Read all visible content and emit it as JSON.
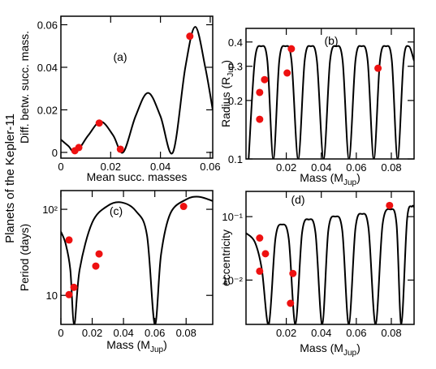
{
  "title": "Planets of the Kepler-11",
  "chart_data": [
    {
      "type": "scatter",
      "annotation": "(a)",
      "xlabel": [
        "Mean succ. masses"
      ],
      "ylabel": [
        "Diff. betw. succ. mass."
      ],
      "xlim": [
        0,
        0.061
      ],
      "xticks": [
        0,
        0.02,
        0.04,
        0.06
      ],
      "ylim": [
        -0.0027,
        0.064
      ],
      "yticks": [
        0,
        0.02,
        0.04,
        0.06
      ],
      "log_y": false,
      "color": "#ee1111",
      "x": [
        0.0056,
        0.0072,
        0.0154,
        0.0239,
        0.0518
      ],
      "values": [
        0.0008,
        0.0023,
        0.0138,
        0.0015,
        0.0546
      ],
      "curve": {
        "x": [
          0,
          0.003,
          0.006,
          0.011,
          0.016,
          0.021,
          0.025,
          0.03,
          0.035,
          0.04,
          0.045,
          0.05,
          0.054,
          0.058,
          0.061
        ],
        "values": [
          0.006,
          0.003,
          0,
          0.008,
          0.0145,
          0.008,
          0,
          0.017,
          0.028,
          0.017,
          0,
          0.04,
          0.059,
          0.04,
          0.02
        ]
      }
    },
    {
      "type": "scatter",
      "annotation": "(b)",
      "xlabel": [
        "Mass (M",
        "Jup",
        ")"
      ],
      "ylabel": [
        "Radius (R",
        "Jup",
        ")"
      ],
      "xlim": [
        -0.003,
        0.093
      ],
      "xticks": [
        0.02,
        0.04,
        0.06,
        0.08
      ],
      "ylim": [
        0.1,
        0.47
      ],
      "yticks": [
        0.1,
        0.2,
        0.3,
        0.4
      ],
      "log_y": true,
      "color": "#ee1111",
      "x": [
        0.0048,
        0.0048,
        0.0076,
        0.0205,
        0.0229,
        0.0724
      ],
      "values": [
        0.16,
        0.22,
        0.256,
        0.277,
        0.369,
        0.293
      ],
      "curve": {
        "x": [
          -0.0015,
          0.002,
          0.0057,
          0.0092,
          0.0126,
          0.016,
          0.0195,
          0.023,
          0.0268,
          0.0305,
          0.034,
          0.0375,
          0.0413,
          0.045,
          0.0486,
          0.0522,
          0.0558,
          0.0595,
          0.063,
          0.0665,
          0.07,
          0.0735,
          0.077,
          0.0803,
          0.0836,
          0.087,
          0.09,
          0.093
        ],
        "values": [
          0.1,
          0.32,
          0.38,
          0.32,
          0.1,
          0.32,
          0.38,
          0.32,
          0.1,
          0.32,
          0.38,
          0.32,
          0.1,
          0.32,
          0.38,
          0.32,
          0.1,
          0.32,
          0.38,
          0.32,
          0.1,
          0.32,
          0.38,
          0.32,
          0.1,
          0.32,
          0.38,
          0.32
        ]
      }
    },
    {
      "type": "scatter",
      "annotation": "(c)",
      "xlabel": [
        "Mass (M",
        "Jup",
        ")"
      ],
      "ylabel": [
        "Period (days)"
      ],
      "xlim": [
        0,
        0.097
      ],
      "xticks": [
        0,
        0.02,
        0.04,
        0.06,
        0.08
      ],
      "ylim": [
        4.6,
        165
      ],
      "yticks": [
        10,
        {
          "value": 100,
          "label": "10²"
        }
      ],
      "log_y": true,
      "color": "#ee1111",
      "x": [
        0.0052,
        0.0052,
        0.0083,
        0.0223,
        0.0244,
        0.0784
      ],
      "values": [
        44,
        10.2,
        12.4,
        21.9,
        30.3,
        108
      ],
      "curve": {
        "x": [
          0,
          0.003,
          0.006,
          0.0085,
          0.012,
          0.02,
          0.03,
          0.039,
          0.048,
          0.055,
          0.06,
          0.064,
          0.07,
          0.08,
          0.088,
          0.097
        ],
        "values": [
          55,
          40,
          20,
          4.6,
          20,
          70,
          110,
          120,
          95,
          50,
          4.6,
          30,
          90,
          130,
          140,
          125
        ]
      }
    },
    {
      "type": "scatter",
      "annotation": "(d)",
      "xlabel": [
        "Mass (M",
        "Jup",
        ")"
      ],
      "ylabel": [
        "eccentricity"
      ],
      "xlim": [
        -0.003,
        0.093
      ],
      "xticks": [
        0.02,
        0.04,
        0.06,
        0.08
      ],
      "ylim": [
        0.002,
        0.25
      ],
      "yticks": [
        {
          "value": 0.01,
          "label": "10⁻²"
        },
        {
          "value": 0.1,
          "label": "10⁻¹"
        }
      ],
      "log_y": true,
      "color": "#ee1111",
      "x": [
        0.0048,
        0.0048,
        0.0081,
        0.0224,
        0.0238,
        0.079
      ],
      "values": [
        0.046,
        0.0138,
        0.026,
        0.0043,
        0.0127,
        0.15
      ],
      "curve": {
        "x": [
          -0.003,
          0.002,
          0.006,
          0.01,
          0.0138,
          0.0176,
          0.0214,
          0.0252,
          0.029,
          0.0329,
          0.0367,
          0.0405,
          0.044,
          0.048,
          0.052,
          0.0557,
          0.0595,
          0.0633,
          0.067,
          0.071,
          0.075,
          0.0795,
          0.083,
          0.0857,
          0.089,
          0.0919,
          0.093
        ],
        "values": [
          0.055,
          0.04,
          0.015,
          0.002,
          0.045,
          0.075,
          0.045,
          0.002,
          0.055,
          0.09,
          0.055,
          0.002,
          0.06,
          0.1,
          0.06,
          0.002,
          0.065,
          0.11,
          0.065,
          0.002,
          0.075,
          0.13,
          0.075,
          0.002,
          0.09,
          0.145,
          0.14
        ]
      }
    }
  ]
}
